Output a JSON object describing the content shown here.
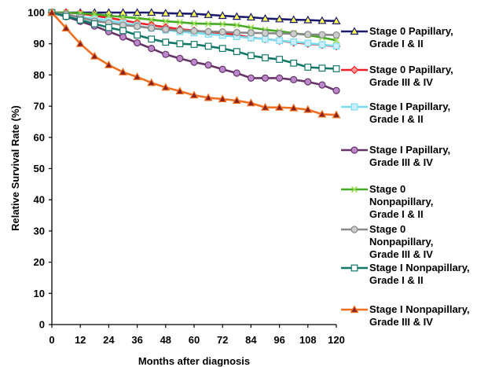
{
  "chart_data": {
    "type": "line",
    "xlabel": "Months after diagnosis",
    "ylabel": "Relative Survival Rate (%)",
    "xlim": [
      0,
      120
    ],
    "ylim": [
      0,
      100
    ],
    "x_ticks": [
      "0",
      "12",
      "24",
      "36",
      "48",
      "60",
      "72",
      "84",
      "96",
      "108",
      "120"
    ],
    "y_ticks": [
      "0",
      "10",
      "20",
      "30",
      "40",
      "50",
      "60",
      "70",
      "80",
      "90",
      "100"
    ],
    "grid": false,
    "legend_position": "right",
    "x": [
      0,
      6,
      12,
      18,
      24,
      30,
      36,
      42,
      48,
      54,
      60,
      66,
      72,
      78,
      84,
      90,
      96,
      102,
      108,
      114,
      120
    ],
    "series": [
      {
        "name": [
          "Stage 0 Papillary,",
          "Grade I & II"
        ],
        "color": "#1a1a6e",
        "marker": "triangle",
        "marker_fill": "#ffff55",
        "values": [
          100,
          100,
          100,
          100,
          100,
          100,
          100,
          100,
          99.8,
          99.7,
          99.6,
          99.3,
          99.0,
          98.7,
          98.5,
          98.1,
          97.9,
          97.7,
          97.6,
          97.4,
          97.3
        ]
      },
      {
        "name": [
          "Stage 0 Papillary,",
          "Grade III & IV"
        ],
        "color": "#ee1c24",
        "marker": "diamond",
        "marker_fill": "#ff9999",
        "values": [
          100,
          100,
          99.7,
          99.0,
          98.3,
          97.5,
          96.7,
          96.0,
          95.3,
          94.7,
          94.2,
          93.8,
          93.4,
          92.8,
          92.0,
          91.5,
          91.0,
          90.4,
          90.0,
          89.6,
          89.2
        ]
      },
      {
        "name": [
          "Stage I Papillary,",
          "Grade I & II"
        ],
        "color": "#77ddee",
        "marker": "square",
        "marker_fill": "#cceeff",
        "values": [
          100,
          99.3,
          98.6,
          98.0,
          97.4,
          96.6,
          95.8,
          95.0,
          94.4,
          93.9,
          93.5,
          93.1,
          92.7,
          92.3,
          91.9,
          91.5,
          91.0,
          90.6,
          90.2,
          89.7,
          89.3
        ]
      },
      {
        "name": [
          "Stage I Papillary,",
          "Grade III & IV"
        ],
        "color": "#663366",
        "marker": "circle",
        "marker_fill": "#bb88cc",
        "values": [
          100,
          98.7,
          97.2,
          95.7,
          93.9,
          92.2,
          90.3,
          88.5,
          86.6,
          85.3,
          84.1,
          83.2,
          81.8,
          80.6,
          79.0,
          79.0,
          79.0,
          78.5,
          77.8,
          76.8,
          75.0
        ]
      },
      {
        "name": [
          "Stage 0",
          "Nonpapillary,",
          "Grade I & II"
        ],
        "color": "#44aa22",
        "marker": "x",
        "marker_fill": "#99dd55",
        "values": [
          100,
          100,
          99.8,
          99.5,
          99.0,
          98.6,
          98.2,
          97.7,
          97.2,
          96.9,
          96.5,
          96.4,
          96.3,
          96.0,
          95.2,
          94.5,
          94.0,
          93.4,
          92.8,
          92.0,
          91.1
        ]
      },
      {
        "name": [
          "Stage 0",
          "Nonpapillary,",
          "Grade III & IV"
        ],
        "color": "#888888",
        "marker": "circle",
        "marker_fill": "#cccccc",
        "values": [
          100,
          99.5,
          98.4,
          97.3,
          96.7,
          96.0,
          95.6,
          95.0,
          94.6,
          94.3,
          94.1,
          93.9,
          93.8,
          93.6,
          93.5,
          93.4,
          93.3,
          93.2,
          93.0,
          92.9,
          92.8
        ]
      },
      {
        "name": [
          "Stage I Nonpapillary,",
          "Grade I & II"
        ],
        "color": "#117766",
        "marker": "square",
        "marker_fill": "#ffffff",
        "values": [
          100,
          98.8,
          97.6,
          96.4,
          95.2,
          94.2,
          92.8,
          91.5,
          90.5,
          90.0,
          89.8,
          89.2,
          88.5,
          87.5,
          86.2,
          85.5,
          85.0,
          83.8,
          82.5,
          82.2,
          82.0
        ]
      },
      {
        "name": [
          "Stage I Nonpapillary,",
          "Grade III & IV"
        ],
        "color": "#f07020",
        "marker": "triangle",
        "marker_fill": "#882222",
        "values": [
          100,
          95.0,
          90.0,
          86.0,
          83.2,
          80.9,
          79.4,
          77.5,
          76.0,
          74.8,
          73.5,
          72.7,
          72.3,
          71.8,
          71.0,
          69.6,
          69.6,
          69.4,
          68.9,
          67.4,
          67.2
        ]
      }
    ]
  }
}
